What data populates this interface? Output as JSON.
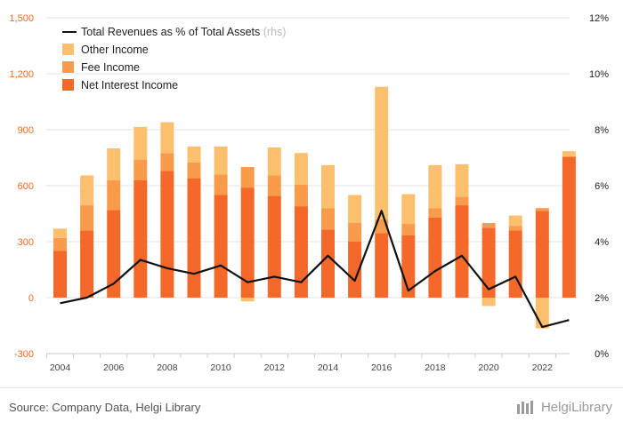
{
  "chart_data": {
    "type": "bar",
    "stacked": true,
    "categories": [
      "2004",
      "2005",
      "2006",
      "2007",
      "2008",
      "2009",
      "2010",
      "2011",
      "2012",
      "2013",
      "2014",
      "2015",
      "2016",
      "2017",
      "2018",
      "2019",
      "2020",
      "2021",
      "2022",
      "2023"
    ],
    "x_tick_labels": [
      "2004",
      "2006",
      "2008",
      "2010",
      "2012",
      "2014",
      "2016",
      "2018",
      "2020",
      "2022"
    ],
    "series": [
      {
        "name": "Net Interest Income",
        "color": "#f4692a",
        "values": [
          250,
          360,
          470,
          630,
          680,
          640,
          550,
          590,
          545,
          490,
          365,
          300,
          345,
          335,
          430,
          495,
          375,
          360,
          465,
          755
        ]
      },
      {
        "name": "Fee Income",
        "color": "#f89c4c",
        "values": [
          70,
          135,
          160,
          110,
          95,
          85,
          110,
          110,
          110,
          115,
          115,
          100,
          75,
          60,
          50,
          45,
          25,
          25,
          15,
          0
        ]
      },
      {
        "name": "Other Income",
        "color": "#fbbf6e",
        "values": [
          50,
          160,
          170,
          175,
          165,
          85,
          150,
          0,
          150,
          170,
          230,
          150,
          710,
          160,
          230,
          175,
          0,
          55,
          0,
          30
        ]
      }
    ],
    "negative_other": [
      0,
      0,
      0,
      0,
      0,
      0,
      0,
      -20,
      0,
      0,
      0,
      0,
      0,
      0,
      0,
      0,
      -45,
      0,
      -165,
      0
    ],
    "line_series": {
      "name": "Total Revenues as % of Total Assets",
      "axis_note": "(rhs)",
      "color": "#111111",
      "values": [
        1.8,
        2.0,
        2.5,
        3.35,
        3.05,
        2.85,
        3.15,
        2.55,
        2.75,
        2.55,
        3.5,
        2.6,
        5.1,
        2.25,
        2.95,
        3.5,
        2.3,
        2.75,
        0.95,
        1.2
      ]
    },
    "y_left": {
      "min": -300,
      "max": 1500,
      "ticks": [
        "-300",
        "0",
        "300",
        "600",
        "900",
        "1,200",
        "1,500"
      ]
    },
    "y_right": {
      "min": 0,
      "max": 12,
      "ticks": [
        "0%",
        "2%",
        "4%",
        "6%",
        "8%",
        "10%",
        "12%"
      ]
    },
    "grid": true,
    "legend_position": "top-left"
  },
  "footer": {
    "source": "Source: Company Data, Helgi Library",
    "brand": "HelgiLibrary"
  }
}
